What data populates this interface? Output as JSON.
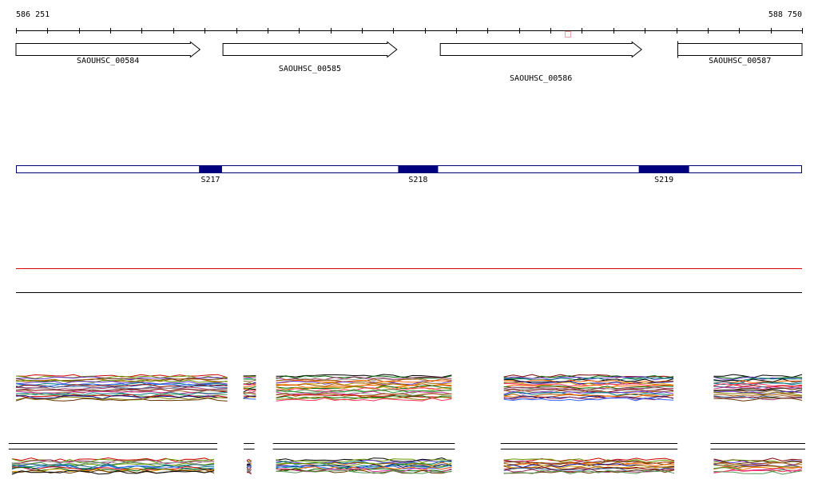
{
  "ruler": {
    "start": 586251,
    "end": 588750,
    "start_label": "586 251",
    "end_label": "588 750"
  },
  "genes": [
    {
      "name": "SAOUHSC_00584",
      "start": 586251,
      "end": 586836,
      "strand": "+"
    },
    {
      "name": "SAOUHSC_00585",
      "start": 586909,
      "end": 587462,
      "strand": "+"
    },
    {
      "name": "SAOUHSC_00586",
      "start": 587600,
      "end": 588240,
      "strand": "+"
    },
    {
      "name": "SAOUHSC_00587",
      "start": 588355,
      "end": 588750,
      "strand": "-"
    }
  ],
  "segments": [
    {
      "name": "S217",
      "start": 586833,
      "end": 586906
    },
    {
      "name": "S218",
      "start": 587466,
      "end": 587593
    },
    {
      "name": "S219",
      "start": 588231,
      "end": 588391
    }
  ],
  "colors": {
    "segment_fill": "#00007f",
    "segment_track_border": "#00007f",
    "threshold_line": "#d40000",
    "baseline": "#000000"
  },
  "expression_blocks_upper": [
    {
      "start": 586251,
      "end": 586923
    },
    {
      "start": 586974,
      "end": 587014
    },
    {
      "start": 587078,
      "end": 587636
    },
    {
      "start": 587802,
      "end": 588341
    },
    {
      "start": 588469,
      "end": 588750
    }
  ],
  "expression_blocks_lower": [
    {
      "start": 586238,
      "end": 586881
    },
    {
      "start": 586985,
      "end": 586999
    },
    {
      "start": 587078,
      "end": 587636
    },
    {
      "start": 587802,
      "end": 588344
    },
    {
      "start": 588469,
      "end": 588750
    }
  ]
}
